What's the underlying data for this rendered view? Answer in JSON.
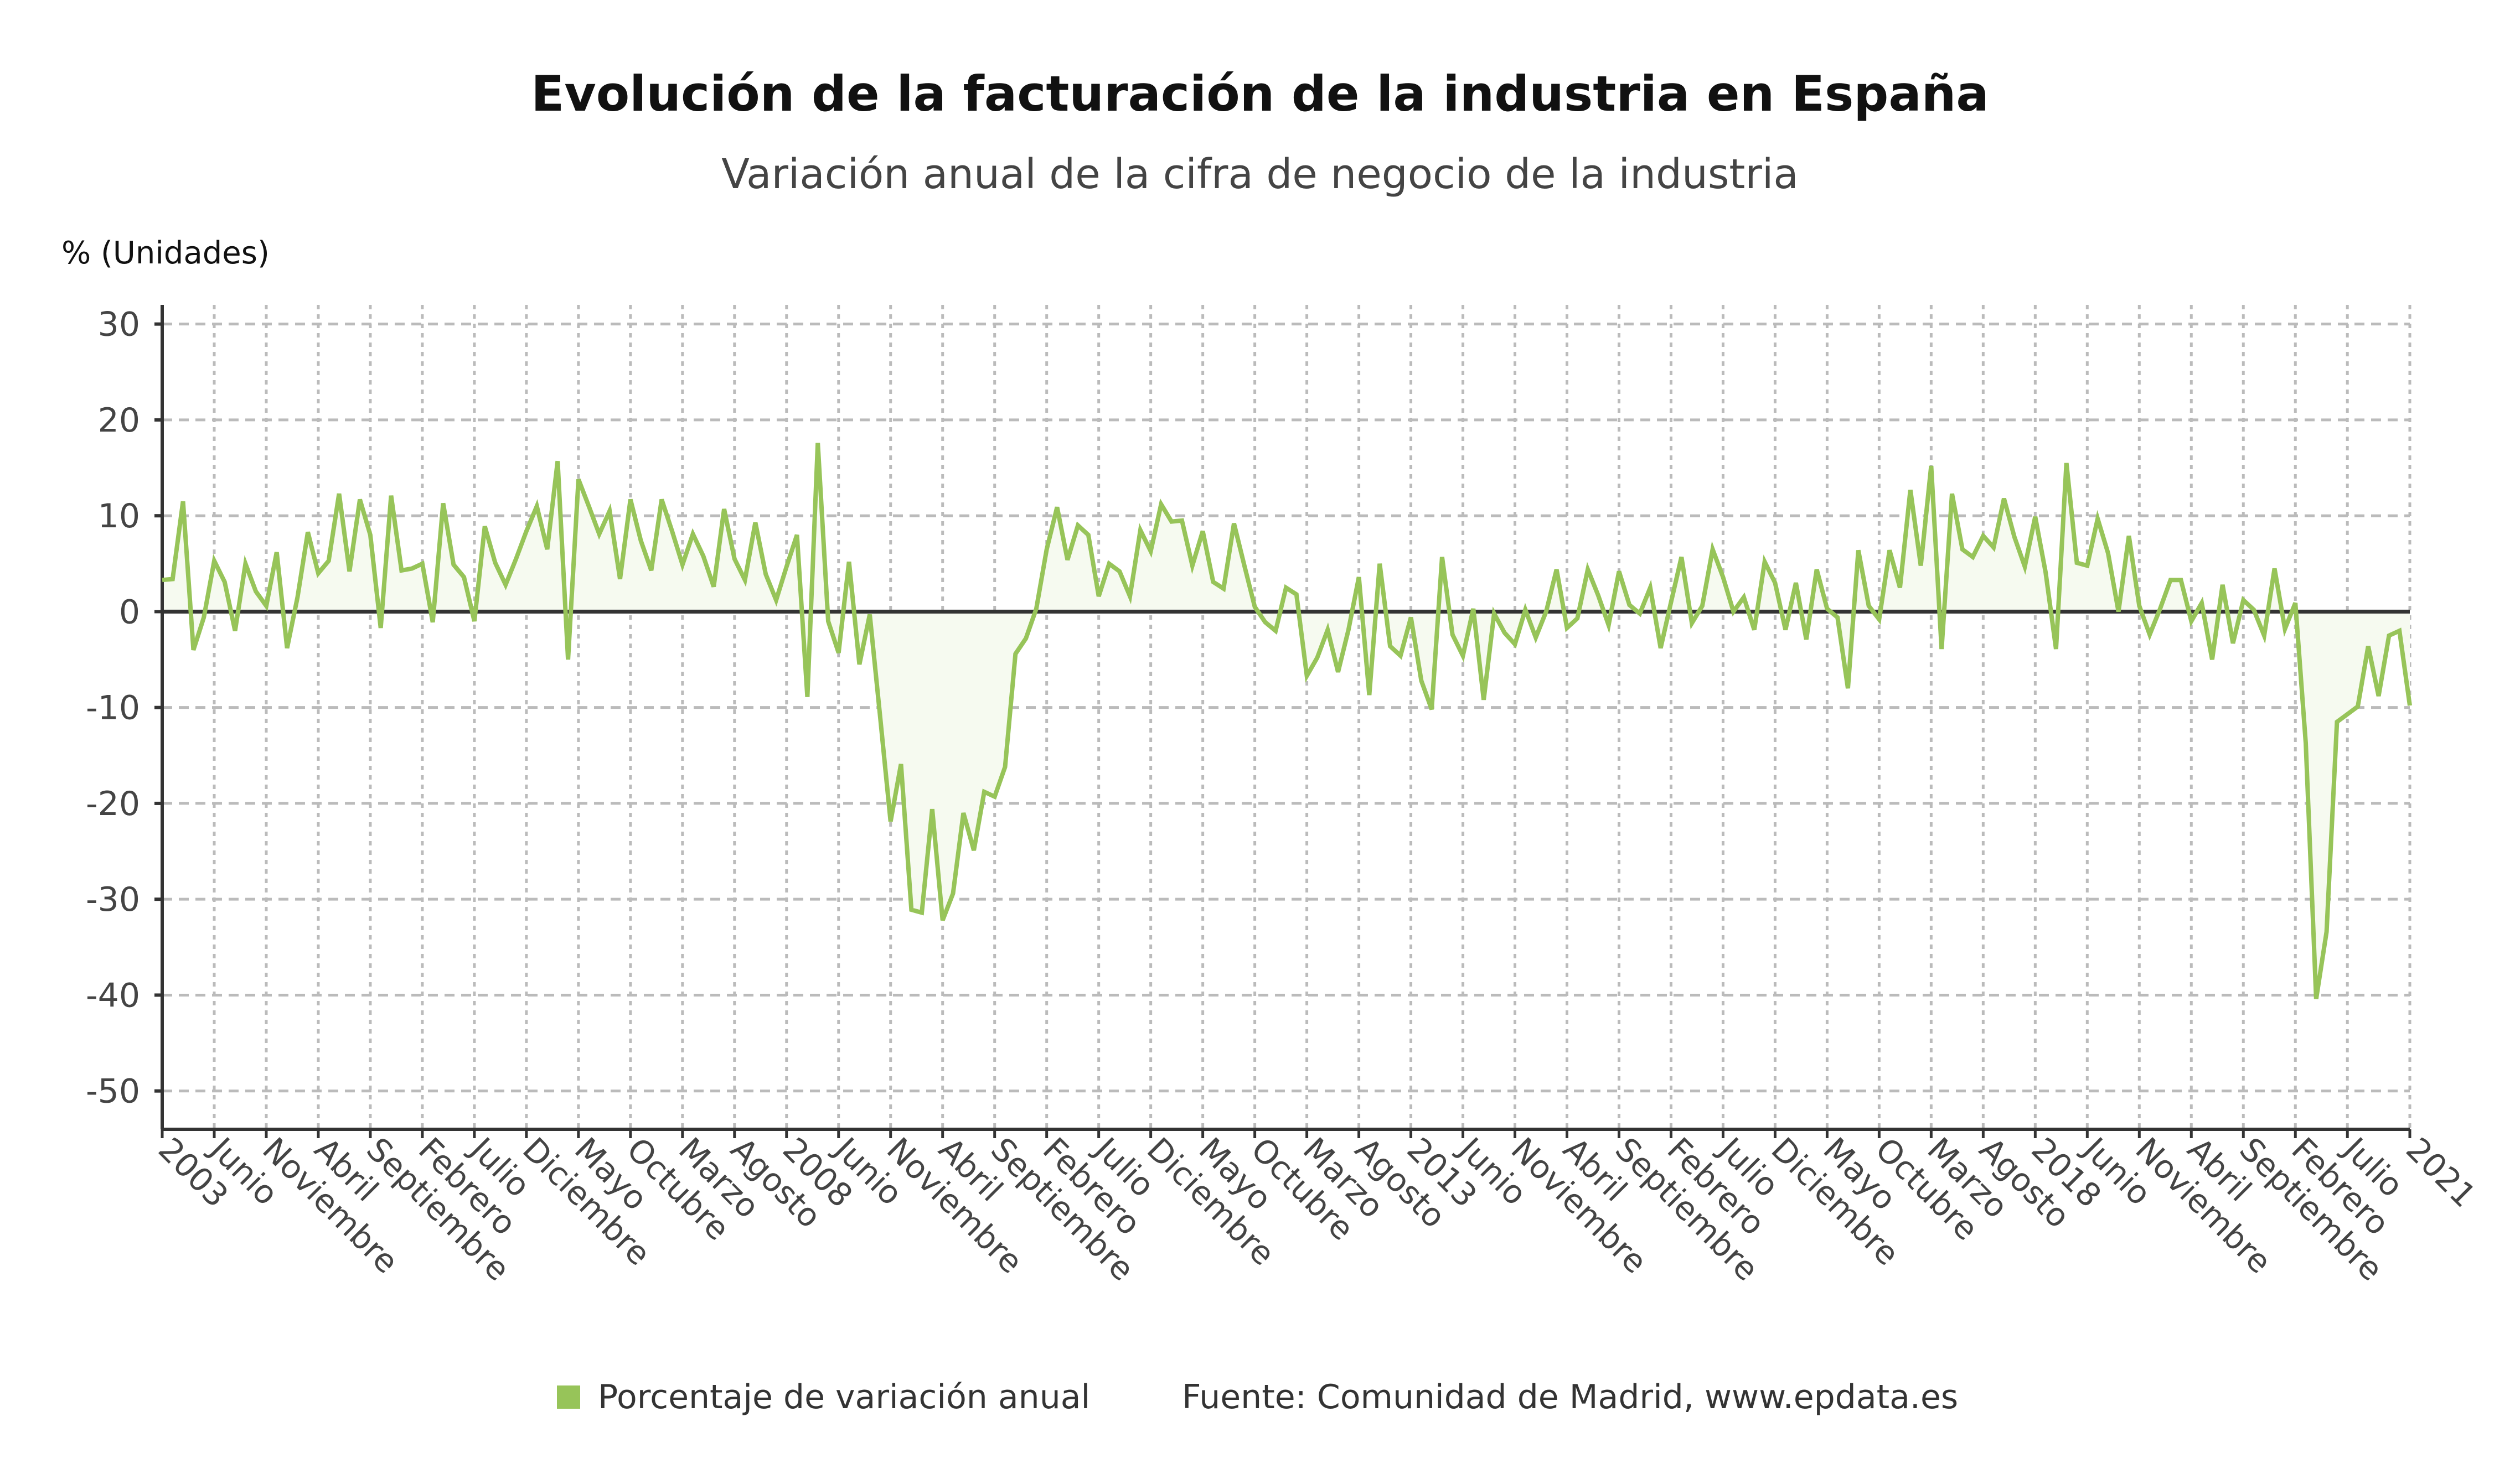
{
  "header": {
    "title": "Evolución de la facturación de la industria en España",
    "subtitle": "Variación anual de la cifra de negocio de la industria"
  },
  "legend": {
    "series_label": "Porcentaje de variación anual",
    "source": "Fuente: Comunidad de Madrid, www.epdata.es"
  },
  "colors": {
    "series": "#97c459",
    "area_fill": "#f6faf0",
    "axis": "#333333",
    "grid": "#bbbbbb",
    "tick_text": "#444444"
  },
  "chart_data": {
    "type": "line",
    "title": "Evolución de la facturación de la industria en España",
    "subtitle": "Variación anual de la cifra de negocio de la industria",
    "ylabel": "% (Unidades)",
    "xlabel": "",
    "x_range": [
      "2003-01",
      "2021-01"
    ],
    "frequency": "monthly",
    "ylim": [
      -54,
      32
    ],
    "y_ticks": [
      30,
      20,
      10,
      0,
      -10,
      -20,
      -30,
      -40,
      -50
    ],
    "y_tick_labels": [
      "30",
      "20",
      "10",
      "0",
      "-10",
      "-20",
      "-30",
      "-40",
      "-50"
    ],
    "grid": true,
    "area_fill_to_zero": true,
    "legend_position": "bottom",
    "x_ticks": [
      {
        "date": "2003-01",
        "label": "2003"
      },
      {
        "date": "2003-06",
        "label": "Junio"
      },
      {
        "date": "2003-11",
        "label": "Noviembre"
      },
      {
        "date": "2004-04",
        "label": "Abril"
      },
      {
        "date": "2004-09",
        "label": "Septiembre"
      },
      {
        "date": "2005-02",
        "label": "Febrero"
      },
      {
        "date": "2005-07",
        "label": "Julio"
      },
      {
        "date": "2005-12",
        "label": "Diciembre"
      },
      {
        "date": "2006-05",
        "label": "Mayo"
      },
      {
        "date": "2006-10",
        "label": "Octubre"
      },
      {
        "date": "2007-03",
        "label": "Marzo"
      },
      {
        "date": "2007-08",
        "label": "Agosto"
      },
      {
        "date": "2008-01",
        "label": "2008"
      },
      {
        "date": "2008-06",
        "label": "Junio"
      },
      {
        "date": "2008-11",
        "label": "Noviembre"
      },
      {
        "date": "2009-04",
        "label": "Abril"
      },
      {
        "date": "2009-09",
        "label": "Septiembre"
      },
      {
        "date": "2010-02",
        "label": "Febrero"
      },
      {
        "date": "2010-07",
        "label": "Julio"
      },
      {
        "date": "2010-12",
        "label": "Diciembre"
      },
      {
        "date": "2011-05",
        "label": "Mayo"
      },
      {
        "date": "2011-10",
        "label": "Octubre"
      },
      {
        "date": "2012-03",
        "label": "Marzo"
      },
      {
        "date": "2012-08",
        "label": "Agosto"
      },
      {
        "date": "2013-01",
        "label": "2013"
      },
      {
        "date": "2013-06",
        "label": "Junio"
      },
      {
        "date": "2013-11",
        "label": "Noviembre"
      },
      {
        "date": "2014-04",
        "label": "Abril"
      },
      {
        "date": "2014-09",
        "label": "Septiembre"
      },
      {
        "date": "2015-02",
        "label": "Febrero"
      },
      {
        "date": "2015-07",
        "label": "Julio"
      },
      {
        "date": "2015-12",
        "label": "Diciembre"
      },
      {
        "date": "2016-05",
        "label": "Mayo"
      },
      {
        "date": "2016-10",
        "label": "Octubre"
      },
      {
        "date": "2017-03",
        "label": "Marzo"
      },
      {
        "date": "2017-08",
        "label": "Agosto"
      },
      {
        "date": "2018-01",
        "label": "2018"
      },
      {
        "date": "2018-06",
        "label": "Junio"
      },
      {
        "date": "2018-11",
        "label": "Noviembre"
      },
      {
        "date": "2019-04",
        "label": "Abril"
      },
      {
        "date": "2019-09",
        "label": "Septiembre"
      },
      {
        "date": "2020-02",
        "label": "Febrero"
      },
      {
        "date": "2020-07",
        "label": "Julio"
      },
      {
        "date": "2021-01",
        "label": "2021"
      }
    ],
    "series": [
      {
        "name": "Porcentaje de variación anual",
        "values": [
          3.3,
          3.4,
          11.5,
          -4.0,
          -0.6,
          5.3,
          3.1,
          -2.0,
          5.0,
          2.1,
          0.6,
          6.2,
          -3.8,
          1.5,
          8.3,
          4.0,
          5.3,
          12.3,
          4.2,
          11.7,
          8.0,
          -1.7,
          12.1,
          4.3,
          4.5,
          5.0,
          -1.1,
          11.3,
          4.9,
          3.6,
          -1.0,
          8.9,
          5.1,
          2.8,
          5.5,
          8.4,
          11.0,
          6.5,
          15.7,
          -5.0,
          13.8,
          11.0,
          8.1,
          10.5,
          3.4,
          11.7,
          7.4,
          4.3,
          11.7,
          8.4,
          4.9,
          8.1,
          5.8,
          2.6,
          10.7,
          5.5,
          3.3,
          9.3,
          3.9,
          1.2,
          4.7,
          8.0,
          -8.9,
          17.6,
          -1.0,
          -4.3,
          5.2,
          -5.5,
          -0.3,
          -11.0,
          -21.9,
          -15.9,
          -31.1,
          -31.4,
          -20.6,
          -32.2,
          -29.4,
          -21.0,
          -24.9,
          -18.8,
          -19.3,
          -16.2,
          -4.4,
          -2.8,
          0.3,
          6.5,
          10.9,
          5.4,
          9.0,
          8.0,
          1.6,
          5.0,
          4.2,
          1.6,
          8.5,
          6.3,
          11.2,
          9.4,
          9.5,
          4.8,
          8.4,
          3.1,
          2.4,
          9.2,
          4.8,
          0.5,
          -1.1,
          -2.0,
          2.5,
          1.8,
          -6.7,
          -4.8,
          -1.9,
          -6.3,
          -1.9,
          3.6,
          -8.7,
          5.0,
          -3.6,
          -4.6,
          -0.6,
          -7.2,
          -10.2,
          5.7,
          -2.4,
          -4.6,
          0.3,
          -9.2,
          -0.2,
          -2.2,
          -3.4,
          0.2,
          -2.7,
          0.0,
          4.4,
          -1.7,
          -0.7,
          4.4,
          1.7,
          -1.4,
          4.2,
          0.7,
          -0.2,
          2.5,
          -3.8,
          1.0,
          5.7,
          -1.2,
          0.6,
          6.5,
          3.6,
          0.0,
          1.5,
          -1.9,
          5.2,
          3.0,
          -1.9,
          3.0,
          -2.9,
          4.4,
          0.3,
          -0.6,
          -8.0,
          6.4,
          0.6,
          -0.8,
          6.4,
          2.5,
          12.7,
          4.8,
          15.2,
          -3.9,
          12.3,
          6.5,
          5.7,
          7.9,
          6.7,
          11.8,
          7.8,
          4.7,
          9.9,
          4.1,
          -3.9,
          15.5,
          5.1,
          4.8,
          9.7,
          6.1,
          0.0,
          7.9,
          0.6,
          -2.4,
          0.3,
          3.3,
          3.3,
          -1.0,
          0.9,
          -5.0,
          2.8,
          -3.3,
          1.2,
          0.2,
          -2.5,
          4.5,
          -1.8,
          0.9,
          -13.7,
          -40.4,
          -33.4,
          -11.5,
          -10.7,
          -9.9,
          -3.6,
          -8.8,
          -2.5,
          -2.0,
          -9.8
        ]
      }
    ]
  }
}
